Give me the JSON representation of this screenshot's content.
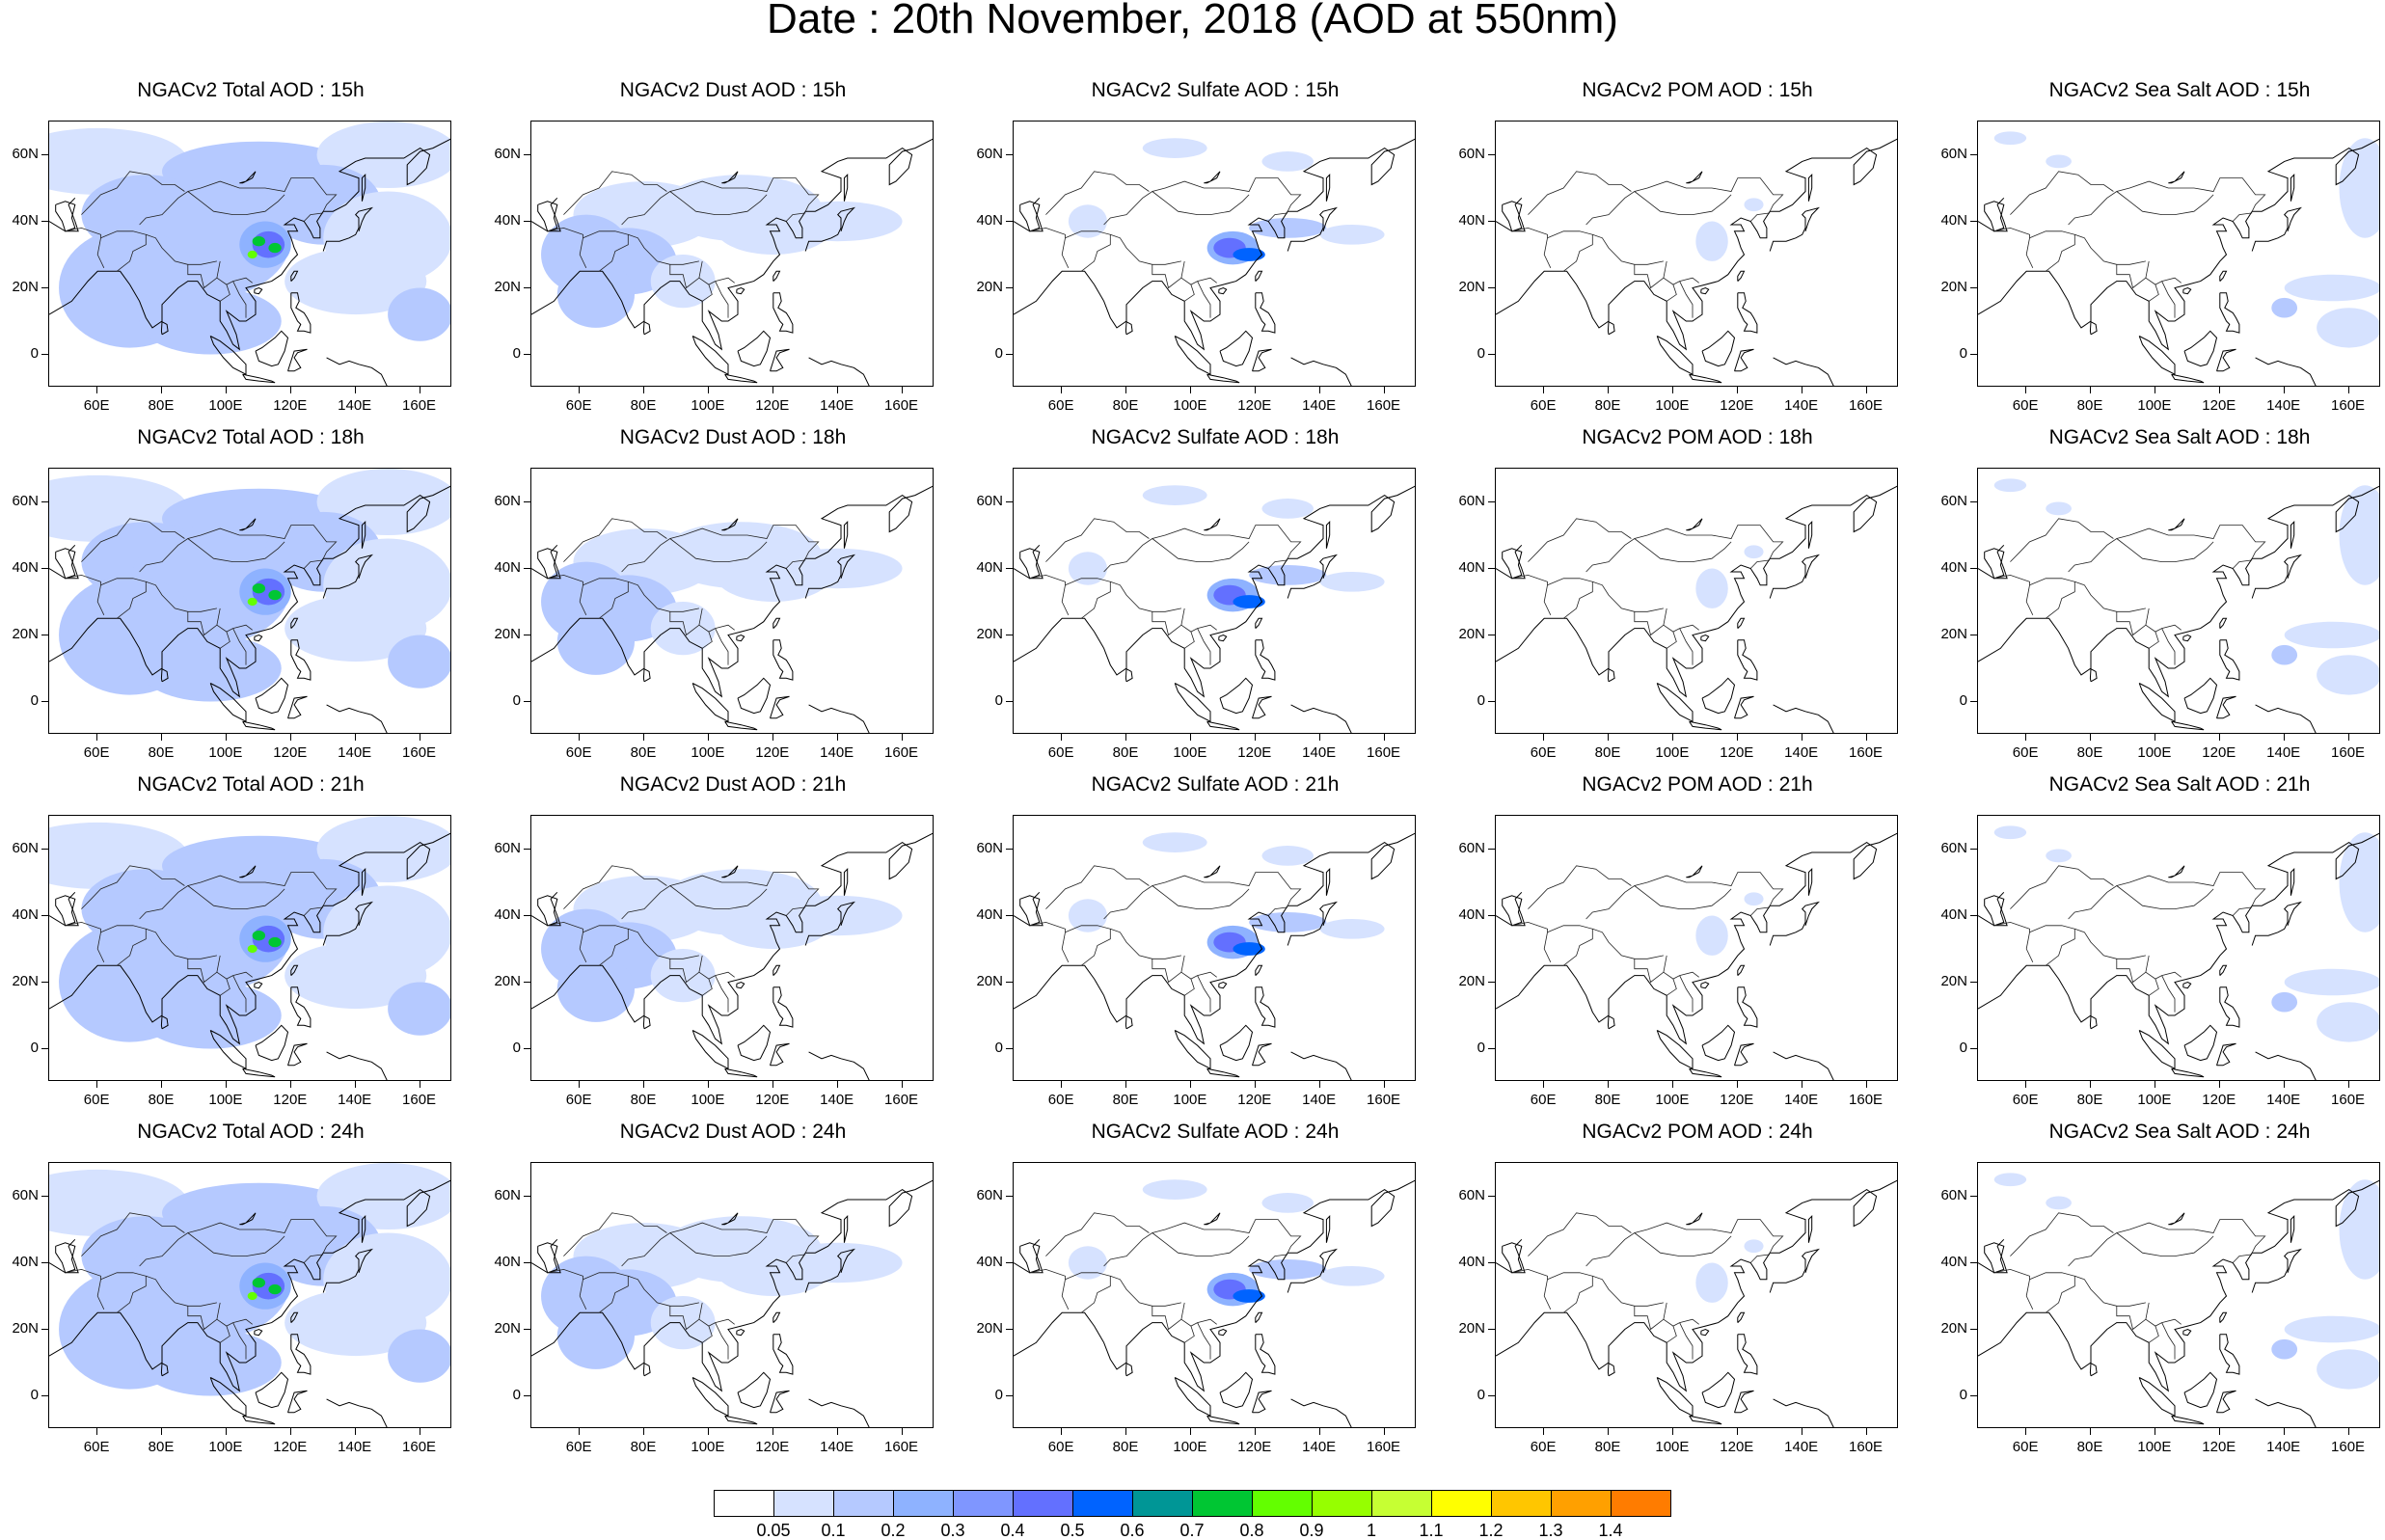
{
  "title": "Date : 20th November, 2018 (AOD at 550nm)",
  "map_axes": {
    "lon_ticks": [
      "60E",
      "80E",
      "100E",
      "120E",
      "140E",
      "160E"
    ],
    "lat_ticks": [
      "60N",
      "40N",
      "20N",
      "0"
    ]
  },
  "panels": [
    {
      "title": "NGACv2 Total AOD : 15h",
      "species": "total",
      "hour": "15h"
    },
    {
      "title": "NGACv2 Dust AOD : 15h",
      "species": "dust",
      "hour": "15h"
    },
    {
      "title": "NGACv2 Sulfate AOD : 15h",
      "species": "sulfate",
      "hour": "15h"
    },
    {
      "title": "NGACv2 POM AOD : 15h",
      "species": "pom",
      "hour": "15h"
    },
    {
      "title": "NGACv2 Sea Salt AOD : 15h",
      "species": "seasalt",
      "hour": "15h"
    },
    {
      "title": "NGACv2 Total AOD : 18h",
      "species": "total",
      "hour": "18h"
    },
    {
      "title": "NGACv2 Dust AOD : 18h",
      "species": "dust",
      "hour": "18h"
    },
    {
      "title": "NGACv2 Sulfate AOD : 18h",
      "species": "sulfate",
      "hour": "18h"
    },
    {
      "title": "NGACv2 POM AOD : 18h",
      "species": "pom",
      "hour": "18h"
    },
    {
      "title": "NGACv2 Sea Salt AOD : 18h",
      "species": "seasalt",
      "hour": "18h"
    },
    {
      "title": "NGACv2 Total AOD : 21h",
      "species": "total",
      "hour": "21h"
    },
    {
      "title": "NGACv2 Dust AOD : 21h",
      "species": "dust",
      "hour": "21h"
    },
    {
      "title": "NGACv2 Sulfate AOD : 21h",
      "species": "sulfate",
      "hour": "21h"
    },
    {
      "title": "NGACv2 POM AOD : 21h",
      "species": "pom",
      "hour": "21h"
    },
    {
      "title": "NGACv2 Sea Salt AOD : 21h",
      "species": "seasalt",
      "hour": "21h"
    },
    {
      "title": "NGACv2 Total AOD : 24h",
      "species": "total",
      "hour": "24h"
    },
    {
      "title": "NGACv2 Dust AOD : 24h",
      "species": "dust",
      "hour": "24h"
    },
    {
      "title": "NGACv2 Sulfate AOD : 24h",
      "species": "sulfate",
      "hour": "24h"
    },
    {
      "title": "NGACv2 POM AOD : 24h",
      "species": "pom",
      "hour": "24h"
    },
    {
      "title": "NGACv2 Sea Salt  AOD : 24h",
      "species": "seasalt",
      "hour": "24h"
    }
  ],
  "colorbar": {
    "labels": [
      "0.05",
      "0.1",
      "0.2",
      "0.3",
      "0.4",
      "0.5",
      "0.6",
      "0.7",
      "0.8",
      "0.9",
      "1",
      "1.1",
      "1.2",
      "1.3",
      "1.4"
    ],
    "colors": [
      "#ffffff",
      "#d6e2ff",
      "#b5c9ff",
      "#8eb2ff",
      "#7f96ff",
      "#6370ff",
      "#0063ff",
      "#009696",
      "#00c633",
      "#63ff00",
      "#96ff00",
      "#c6ff33",
      "#ffff00",
      "#ffc600",
      "#ffa000",
      "#ff7c00",
      "#ff1900"
    ]
  }
}
